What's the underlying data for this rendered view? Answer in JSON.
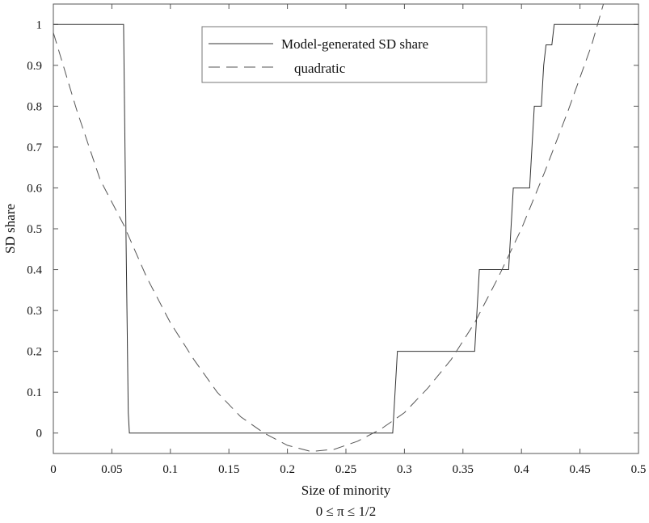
{
  "chart_data": {
    "type": "line",
    "xlabel": "Size of minority",
    "xlabel_sub": "0 ≤ π ≤ 1/2",
    "ylabel": "SD share",
    "xlim": [
      0,
      0.5
    ],
    "ylim": [
      -0.05,
      1.05
    ],
    "grid": false,
    "legend_position": "top-center",
    "x_ticks": [
      0,
      0.05,
      0.1,
      0.15,
      0.2,
      0.25,
      0.3,
      0.35,
      0.4,
      0.45,
      0.5
    ],
    "x_tick_labels": [
      "0",
      "0.05",
      "0.1",
      "0.15",
      "0.2",
      "0.25",
      "0.3",
      "0.35",
      "0.4",
      "0.45",
      "0.5"
    ],
    "y_ticks": [
      0,
      0.1,
      0.2,
      0.3,
      0.4,
      0.5,
      0.6,
      0.7,
      0.8,
      0.9,
      1
    ],
    "y_tick_labels": [
      "0",
      "0.1",
      "0.2",
      "0.3",
      "0.4",
      "0.5",
      "0.6",
      "0.7",
      "0.8",
      "0.9",
      "1"
    ],
    "series": [
      {
        "name": "Model-generated SD share",
        "style": "solid",
        "color": "#333333",
        "x": [
          0,
          0.06,
          0.062,
          0.064,
          0.065,
          0.29,
          0.292,
          0.294,
          0.36,
          0.362,
          0.364,
          0.389,
          0.391,
          0.393,
          0.407,
          0.409,
          0.411,
          0.417,
          0.419,
          0.421,
          0.426,
          0.428,
          0.43,
          0.5
        ],
        "y": [
          1,
          1,
          0.5,
          0.05,
          0,
          0,
          0.1,
          0.2,
          0.2,
          0.3,
          0.4,
          0.4,
          0.5,
          0.6,
          0.6,
          0.7,
          0.8,
          0.8,
          0.9,
          0.95,
          0.95,
          1,
          1,
          1
        ]
      },
      {
        "name": "quadratic",
        "style": "dashed",
        "color": "#555555",
        "x": [
          0,
          0.02,
          0.04,
          0.06,
          0.08,
          0.1,
          0.12,
          0.14,
          0.16,
          0.18,
          0.2,
          0.22,
          0.24,
          0.26,
          0.28,
          0.3,
          0.32,
          0.34,
          0.36,
          0.38,
          0.4,
          0.42,
          0.44,
          0.46,
          0.47
        ],
        "y": [
          0.98,
          0.79,
          0.62,
          0.51,
          0.38,
          0.27,
          0.18,
          0.1,
          0.04,
          0.0,
          -0.03,
          -0.045,
          -0.04,
          -0.02,
          0.01,
          0.05,
          0.11,
          0.18,
          0.27,
          0.38,
          0.5,
          0.64,
          0.79,
          0.95,
          1.05
        ]
      }
    ]
  }
}
